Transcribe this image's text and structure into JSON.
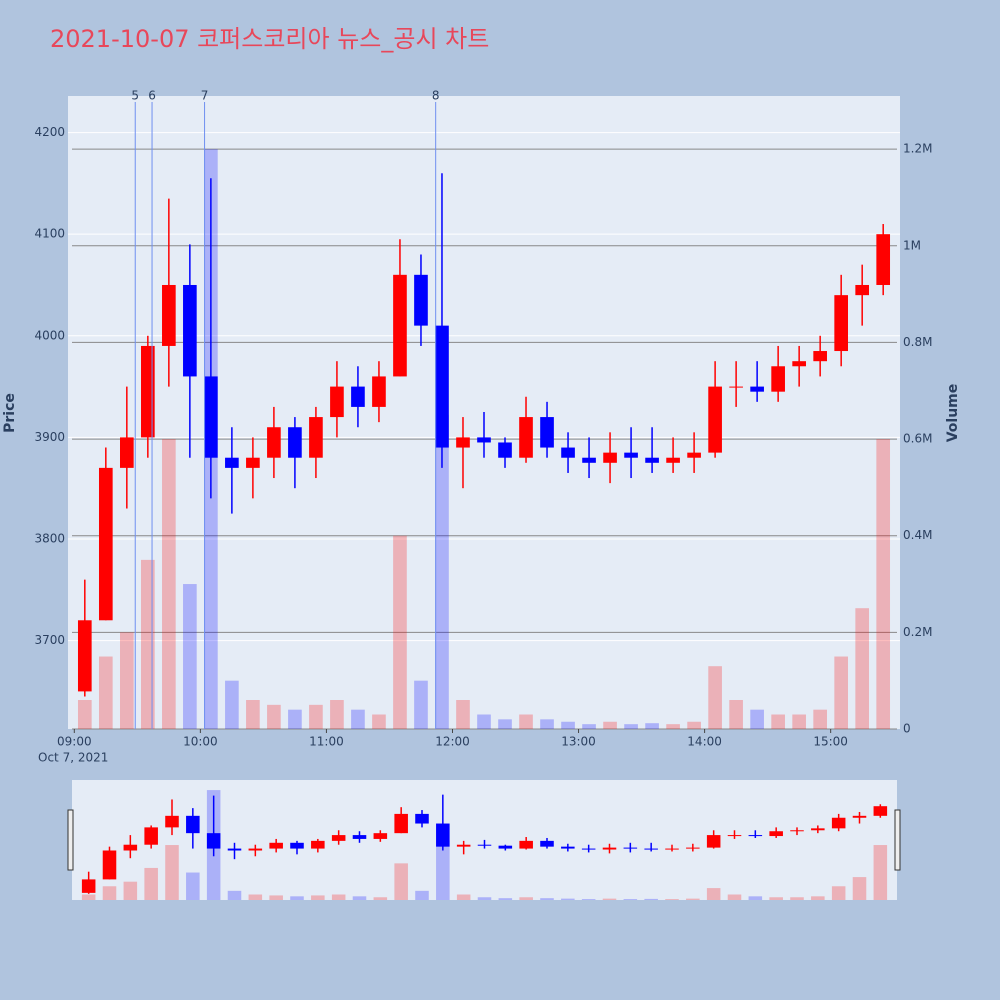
{
  "chart_data": {
    "type": "candlestick",
    "title": "2021-10-07 코퍼스코리아 뉴스_공시 차트",
    "y_label": "Price",
    "y2_label": "Volume",
    "x_date_label": "Oct 7, 2021",
    "increasing_color": "#ff0000",
    "decreasing_color": "#0000ff",
    "x": [
      "09:00",
      "09:10",
      "09:20",
      "09:30",
      "09:40",
      "09:50",
      "10:00",
      "10:10",
      "10:20",
      "10:30",
      "10:40",
      "10:50",
      "11:00",
      "11:10",
      "11:20",
      "11:30",
      "11:40",
      "11:50",
      "12:00",
      "12:10",
      "12:20",
      "12:30",
      "12:40",
      "12:50",
      "13:00",
      "13:10",
      "13:20",
      "13:30",
      "13:40",
      "13:50",
      "14:00",
      "14:10",
      "14:20",
      "14:30",
      "14:40",
      "14:50",
      "15:00",
      "15:10",
      "15:20"
    ],
    "open": [
      3650,
      3720,
      3870,
      3900,
      3990,
      4050,
      3960,
      3880,
      3870,
      3880,
      3910,
      3880,
      3920,
      3950,
      3930,
      3960,
      4060,
      4010,
      3890,
      3900,
      3895,
      3880,
      3920,
      3890,
      3880,
      3875,
      3885,
      3880,
      3875,
      3880,
      3885,
      3950,
      3950,
      3945,
      3970,
      3975,
      3985,
      4040,
      4050
    ],
    "high": [
      3760,
      3890,
      3950,
      4000,
      4135,
      4090,
      4155,
      3910,
      3900,
      3930,
      3920,
      3930,
      3975,
      3970,
      3975,
      4095,
      4080,
      4160,
      3920,
      3925,
      3900,
      3940,
      3935,
      3905,
      3900,
      3905,
      3910,
      3910,
      3900,
      3905,
      3975,
      3975,
      3975,
      3990,
      3990,
      4000,
      4060,
      4070,
      4110
    ],
    "low": [
      3645,
      3720,
      3830,
      3880,
      3950,
      3880,
      3840,
      3825,
      3840,
      3860,
      3850,
      3860,
      3900,
      3910,
      3915,
      3960,
      3990,
      3870,
      3850,
      3880,
      3870,
      3875,
      3880,
      3865,
      3860,
      3855,
      3860,
      3865,
      3865,
      3865,
      3880,
      3930,
      3935,
      3935,
      3950,
      3960,
      3970,
      4010,
      4040
    ],
    "close": [
      3720,
      3870,
      3900,
      3990,
      4050,
      3960,
      3880,
      3870,
      3880,
      3910,
      3880,
      3920,
      3950,
      3930,
      3960,
      4060,
      4010,
      3890,
      3900,
      3895,
      3880,
      3920,
      3890,
      3880,
      3875,
      3885,
      3880,
      3875,
      3880,
      3885,
      3950,
      3950,
      3945,
      3970,
      3975,
      3985,
      4040,
      4050,
      4100
    ],
    "volume": [
      60000,
      150000,
      200000,
      350000,
      600000,
      300000,
      1200000,
      100000,
      60000,
      50000,
      40000,
      50000,
      60000,
      40000,
      30000,
      400000,
      100000,
      650000,
      60000,
      30000,
      20000,
      30000,
      20000,
      15000,
      10000,
      15000,
      10000,
      12000,
      10000,
      15000,
      130000,
      60000,
      40000,
      30000,
      30000,
      40000,
      150000,
      250000,
      600000
    ],
    "xlim": [
      "08:57",
      "15:33"
    ],
    "xticks": [
      "09:00",
      "10:00",
      "11:00",
      "12:00",
      "13:00",
      "14:00",
      "15:00"
    ],
    "ylim": [
      3613,
      4236
    ],
    "yticks": [
      3700,
      3800,
      3900,
      4000,
      4100,
      4200
    ],
    "y2lim": [
      0,
      1310000
    ],
    "y2ticks": [
      0,
      {
        "value": 200000,
        "label": "0.2M"
      },
      {
        "value": 400000,
        "label": "0.4M"
      },
      {
        "value": 600000,
        "label": "0.6M"
      },
      {
        "value": 800000,
        "label": "0.8M"
      },
      {
        "value": 1000000,
        "label": "1M"
      },
      {
        "value": 1200000,
        "label": "1.2M"
      }
    ],
    "annotations": [
      {
        "x": "09:29",
        "text": "5"
      },
      {
        "x": "09:37",
        "text": "6"
      },
      {
        "x": "10:02",
        "text": "7"
      },
      {
        "x": "11:52",
        "text": "8"
      }
    ]
  }
}
